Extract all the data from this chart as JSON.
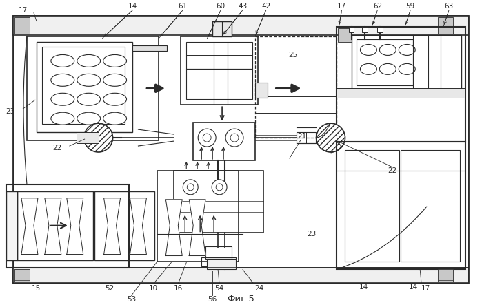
{
  "title": "Фиг.5",
  "bg_color": "#ffffff",
  "line_color": "#2a2a2a",
  "figsize": [
    6.99,
    4.46
  ],
  "dpi": 100
}
